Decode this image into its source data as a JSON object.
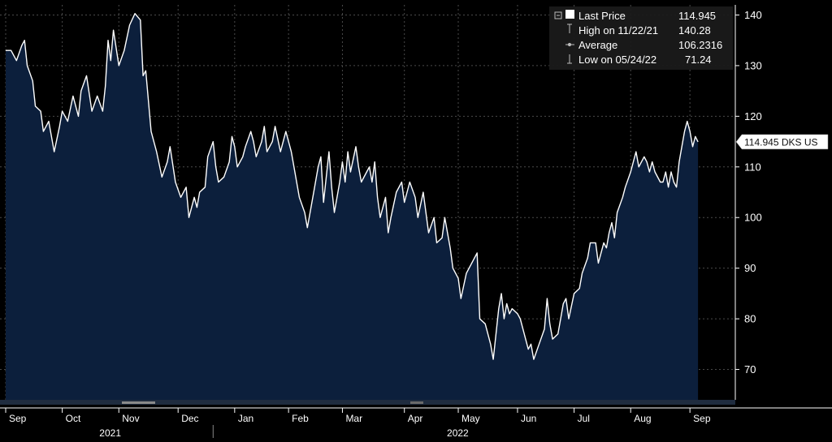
{
  "chart_data": {
    "type": "area",
    "ticker": "DKS US",
    "ylim": [
      64,
      142
    ],
    "yticks": [
      70,
      80,
      90,
      100,
      110,
      120,
      130,
      140
    ],
    "xlim": [
      0,
      263
    ],
    "month_ticks": [
      {
        "label": "Sep",
        "x": 0
      },
      {
        "label": "Oct",
        "x": 21
      },
      {
        "label": "Nov",
        "x": 42
      },
      {
        "label": "Dec",
        "x": 64
      },
      {
        "label": "Jan",
        "x": 85
      },
      {
        "label": "Feb",
        "x": 105
      },
      {
        "label": "Mar",
        "x": 125
      },
      {
        "label": "Apr",
        "x": 148
      },
      {
        "label": "May",
        "x": 168
      },
      {
        "label": "Jun",
        "x": 190
      },
      {
        "label": "Jul",
        "x": 211
      },
      {
        "label": "Aug",
        "x": 232
      },
      {
        "label": "Sep",
        "x": 254
      }
    ],
    "year_labels": [
      {
        "label": "2021",
        "x": 39
      },
      {
        "label": "2022",
        "x": 168
      }
    ],
    "year_divider_x": 77,
    "legend": {
      "last_price_label": "Last Price",
      "last_price_value": "114.945",
      "high_label": "High on 11/22/21",
      "high_value": "140.28",
      "average_label": "Average",
      "average_value": "106.2316",
      "low_label": "Low on 05/24/22",
      "low_value": "71.24"
    },
    "last_tag": "114.945 DKS US",
    "last_value": 114.945,
    "colors": {
      "background": "#000000",
      "area_fill": "#0c1f3c",
      "line": "#ffffff",
      "grid": "#4a4a4a",
      "legend_bg": "#1a1a1a",
      "tag_bg": "#ffffff"
    },
    "series": [
      {
        "values": [
          {
            "x": 0,
            "y": 133
          },
          {
            "x": 2,
            "y": 133
          },
          {
            "x": 4,
            "y": 131
          },
          {
            "x": 6,
            "y": 134
          },
          {
            "x": 7,
            "y": 135
          },
          {
            "x": 8,
            "y": 130
          },
          {
            "x": 10,
            "y": 127
          },
          {
            "x": 11,
            "y": 122
          },
          {
            "x": 13,
            "y": 121
          },
          {
            "x": 14,
            "y": 117
          },
          {
            "x": 16,
            "y": 119
          },
          {
            "x": 18,
            "y": 113
          },
          {
            "x": 20,
            "y": 118
          },
          {
            "x": 21,
            "y": 121
          },
          {
            "x": 23,
            "y": 119
          },
          {
            "x": 25,
            "y": 124
          },
          {
            "x": 27,
            "y": 120
          },
          {
            "x": 28,
            "y": 125
          },
          {
            "x": 30,
            "y": 128
          },
          {
            "x": 32,
            "y": 121
          },
          {
            "x": 34,
            "y": 124
          },
          {
            "x": 36,
            "y": 121
          },
          {
            "x": 37,
            "y": 126
          },
          {
            "x": 38,
            "y": 135
          },
          {
            "x": 39,
            "y": 131
          },
          {
            "x": 40,
            "y": 137
          },
          {
            "x": 42,
            "y": 130
          },
          {
            "x": 44,
            "y": 133
          },
          {
            "x": 46,
            "y": 138
          },
          {
            "x": 48,
            "y": 140.28
          },
          {
            "x": 50,
            "y": 139
          },
          {
            "x": 51,
            "y": 128
          },
          {
            "x": 52,
            "y": 129
          },
          {
            "x": 54,
            "y": 117
          },
          {
            "x": 56,
            "y": 113
          },
          {
            "x": 58,
            "y": 108
          },
          {
            "x": 60,
            "y": 111
          },
          {
            "x": 61,
            "y": 114
          },
          {
            "x": 63,
            "y": 107
          },
          {
            "x": 65,
            "y": 104
          },
          {
            "x": 67,
            "y": 106
          },
          {
            "x": 68,
            "y": 100
          },
          {
            "x": 70,
            "y": 104
          },
          {
            "x": 71,
            "y": 102
          },
          {
            "x": 72,
            "y": 105
          },
          {
            "x": 74,
            "y": 106
          },
          {
            "x": 75,
            "y": 112
          },
          {
            "x": 77,
            "y": 115
          },
          {
            "x": 78,
            "y": 110
          },
          {
            "x": 79,
            "y": 107
          },
          {
            "x": 81,
            "y": 108
          },
          {
            "x": 83,
            "y": 111
          },
          {
            "x": 84,
            "y": 116
          },
          {
            "x": 85,
            "y": 114
          },
          {
            "x": 86,
            "y": 110
          },
          {
            "x": 88,
            "y": 112
          },
          {
            "x": 89,
            "y": 114
          },
          {
            "x": 91,
            "y": 117
          },
          {
            "x": 92,
            "y": 115
          },
          {
            "x": 93,
            "y": 112
          },
          {
            "x": 95,
            "y": 115
          },
          {
            "x": 96,
            "y": 118
          },
          {
            "x": 97,
            "y": 113
          },
          {
            "x": 99,
            "y": 115
          },
          {
            "x": 100,
            "y": 118
          },
          {
            "x": 102,
            "y": 113
          },
          {
            "x": 104,
            "y": 117
          },
          {
            "x": 106,
            "y": 113
          },
          {
            "x": 107,
            "y": 110
          },
          {
            "x": 109,
            "y": 104
          },
          {
            "x": 111,
            "y": 101
          },
          {
            "x": 112,
            "y": 98
          },
          {
            "x": 114,
            "y": 104
          },
          {
            "x": 116,
            "y": 110
          },
          {
            "x": 117,
            "y": 112
          },
          {
            "x": 118,
            "y": 103
          },
          {
            "x": 120,
            "y": 113
          },
          {
            "x": 121,
            "y": 106
          },
          {
            "x": 122,
            "y": 101
          },
          {
            "x": 124,
            "y": 107
          },
          {
            "x": 125,
            "y": 111
          },
          {
            "x": 126,
            "y": 107
          },
          {
            "x": 127,
            "y": 113
          },
          {
            "x": 128,
            "y": 109
          },
          {
            "x": 130,
            "y": 114
          },
          {
            "x": 131,
            "y": 110
          },
          {
            "x": 132,
            "y": 107
          },
          {
            "x": 134,
            "y": 109
          },
          {
            "x": 135,
            "y": 110
          },
          {
            "x": 136,
            "y": 107
          },
          {
            "x": 137,
            "y": 111
          },
          {
            "x": 138,
            "y": 104
          },
          {
            "x": 139,
            "y": 100
          },
          {
            "x": 141,
            "y": 104
          },
          {
            "x": 142,
            "y": 97
          },
          {
            "x": 143,
            "y": 100
          },
          {
            "x": 145,
            "y": 105
          },
          {
            "x": 147,
            "y": 107
          },
          {
            "x": 148,
            "y": 103
          },
          {
            "x": 150,
            "y": 107
          },
          {
            "x": 152,
            "y": 104
          },
          {
            "x": 153,
            "y": 100
          },
          {
            "x": 155,
            "y": 105
          },
          {
            "x": 156,
            "y": 101
          },
          {
            "x": 157,
            "y": 97
          },
          {
            "x": 159,
            "y": 100
          },
          {
            "x": 160,
            "y": 95
          },
          {
            "x": 162,
            "y": 96
          },
          {
            "x": 163,
            "y": 100
          },
          {
            "x": 165,
            "y": 94
          },
          {
            "x": 166,
            "y": 90
          },
          {
            "x": 168,
            "y": 88
          },
          {
            "x": 169,
            "y": 84
          },
          {
            "x": 171,
            "y": 89
          },
          {
            "x": 173,
            "y": 91
          },
          {
            "x": 175,
            "y": 93
          },
          {
            "x": 176,
            "y": 80
          },
          {
            "x": 178,
            "y": 79
          },
          {
            "x": 180,
            "y": 75
          },
          {
            "x": 181,
            "y": 72
          },
          {
            "x": 183,
            "y": 82
          },
          {
            "x": 184,
            "y": 85
          },
          {
            "x": 185,
            "y": 80
          },
          {
            "x": 186,
            "y": 83
          },
          {
            "x": 187,
            "y": 81
          },
          {
            "x": 188,
            "y": 82
          },
          {
            "x": 190,
            "y": 81
          },
          {
            "x": 191,
            "y": 80
          },
          {
            "x": 193,
            "y": 76
          },
          {
            "x": 194,
            "y": 74
          },
          {
            "x": 195,
            "y": 75
          },
          {
            "x": 196,
            "y": 72
          },
          {
            "x": 198,
            "y": 75
          },
          {
            "x": 200,
            "y": 78
          },
          {
            "x": 201,
            "y": 84
          },
          {
            "x": 202,
            "y": 79
          },
          {
            "x": 203,
            "y": 76
          },
          {
            "x": 205,
            "y": 77
          },
          {
            "x": 206,
            "y": 80
          },
          {
            "x": 207,
            "y": 83
          },
          {
            "x": 208,
            "y": 84
          },
          {
            "x": 209,
            "y": 80
          },
          {
            "x": 211,
            "y": 85
          },
          {
            "x": 213,
            "y": 86
          },
          {
            "x": 214,
            "y": 89
          },
          {
            "x": 216,
            "y": 92
          },
          {
            "x": 217,
            "y": 95
          },
          {
            "x": 219,
            "y": 95
          },
          {
            "x": 220,
            "y": 91
          },
          {
            "x": 222,
            "y": 95
          },
          {
            "x": 223,
            "y": 94
          },
          {
            "x": 224,
            "y": 97
          },
          {
            "x": 225,
            "y": 99
          },
          {
            "x": 226,
            "y": 96
          },
          {
            "x": 227,
            "y": 101
          },
          {
            "x": 229,
            "y": 104
          },
          {
            "x": 230,
            "y": 106
          },
          {
            "x": 232,
            "y": 109
          },
          {
            "x": 234,
            "y": 113
          },
          {
            "x": 235,
            "y": 110
          },
          {
            "x": 237,
            "y": 112
          },
          {
            "x": 238,
            "y": 111
          },
          {
            "x": 239,
            "y": 109
          },
          {
            "x": 240,
            "y": 111
          },
          {
            "x": 241,
            "y": 109
          },
          {
            "x": 243,
            "y": 107
          },
          {
            "x": 244,
            "y": 107
          },
          {
            "x": 245,
            "y": 109
          },
          {
            "x": 246,
            "y": 106
          },
          {
            "x": 247,
            "y": 109
          },
          {
            "x": 248,
            "y": 107
          },
          {
            "x": 249,
            "y": 106
          },
          {
            "x": 250,
            "y": 111
          },
          {
            "x": 251,
            "y": 114
          },
          {
            "x": 252,
            "y": 117
          },
          {
            "x": 253,
            "y": 119
          },
          {
            "x": 254,
            "y": 117
          },
          {
            "x": 255,
            "y": 114
          },
          {
            "x": 256,
            "y": 116
          },
          {
            "x": 257,
            "y": 114.945
          }
        ]
      }
    ]
  }
}
